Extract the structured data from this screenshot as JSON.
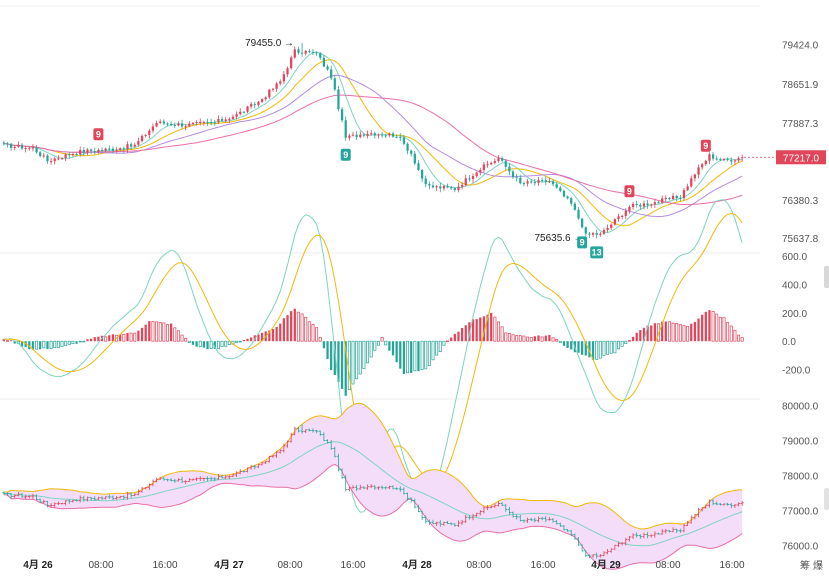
{
  "chart_data": [
    {
      "type": "candlestick",
      "name": "price",
      "title": "",
      "ylim": [
        75400,
        79750
      ],
      "ticks": [
        "79424.0",
        "78651.9",
        "77887.3",
        "76380.3",
        "75637.8"
      ],
      "tick_values": [
        79424.0,
        78651.9,
        77887.3,
        76380.3,
        75637.8
      ],
      "current_price_label": "77217.0",
      "current_price": 77217.0,
      "annotations": [
        {
          "text": "79455.0",
          "value": 79455.0,
          "kind": "high"
        },
        {
          "text": "75635.6",
          "value": 75635.6,
          "kind": "low"
        }
      ],
      "signals": [
        {
          "label": "9",
          "color": "#e0455a"
        },
        {
          "label": "9",
          "color": "#26a69a"
        },
        {
          "label": "9",
          "color": "#e0455a"
        },
        {
          "label": "9",
          "color": "#26a69a"
        },
        {
          "label": "13",
          "color": "#26a69a"
        },
        {
          "label": "9",
          "color": "#e0455a"
        }
      ],
      "key_points": [
        {
          "t": 0,
          "v": 77450
        },
        {
          "t": 8,
          "v": 77400
        },
        {
          "t": 12,
          "v": 77150
        },
        {
          "t": 20,
          "v": 77320
        },
        {
          "t": 30,
          "v": 77380
        },
        {
          "t": 36,
          "v": 77450
        },
        {
          "t": 42,
          "v": 77900
        },
        {
          "t": 50,
          "v": 77850
        },
        {
          "t": 58,
          "v": 77900
        },
        {
          "t": 64,
          "v": 78050
        },
        {
          "t": 70,
          "v": 78300
        },
        {
          "t": 76,
          "v": 78700
        },
        {
          "t": 80,
          "v": 79300
        },
        {
          "t": 86,
          "v": 79250
        },
        {
          "t": 90,
          "v": 78800
        },
        {
          "t": 94,
          "v": 77600
        },
        {
          "t": 100,
          "v": 77700
        },
        {
          "t": 108,
          "v": 77650
        },
        {
          "t": 112,
          "v": 77300
        },
        {
          "t": 116,
          "v": 76650
        },
        {
          "t": 124,
          "v": 76600
        },
        {
          "t": 130,
          "v": 76950
        },
        {
          "t": 136,
          "v": 77200
        },
        {
          "t": 142,
          "v": 76700
        },
        {
          "t": 150,
          "v": 76750
        },
        {
          "t": 156,
          "v": 76300
        },
        {
          "t": 160,
          "v": 75750
        },
        {
          "t": 164,
          "v": 75700
        },
        {
          "t": 172,
          "v": 76250
        },
        {
          "t": 180,
          "v": 76350
        },
        {
          "t": 186,
          "v": 76450
        },
        {
          "t": 190,
          "v": 76900
        },
        {
          "t": 194,
          "v": 77250
        },
        {
          "t": 198,
          "v": 77150
        },
        {
          "t": 203,
          "v": 77217
        }
      ]
    },
    {
      "type": "histogram",
      "name": "macd",
      "ylim": [
        -400,
        600
      ],
      "ticks": [
        "600.0",
        "400.0",
        "200.0",
        "0.0",
        "-200.0"
      ],
      "tick_values": [
        600,
        400,
        200,
        0,
        -200
      ],
      "key_points": [
        {
          "t": 0,
          "v": 20
        },
        {
          "t": 8,
          "v": -60
        },
        {
          "t": 16,
          "v": -40
        },
        {
          "t": 26,
          "v": 30
        },
        {
          "t": 36,
          "v": 60
        },
        {
          "t": 40,
          "v": 140
        },
        {
          "t": 46,
          "v": 120
        },
        {
          "t": 52,
          "v": -30
        },
        {
          "t": 58,
          "v": -60
        },
        {
          "t": 66,
          "v": 10
        },
        {
          "t": 74,
          "v": 80
        },
        {
          "t": 80,
          "v": 230
        },
        {
          "t": 86,
          "v": 100
        },
        {
          "t": 90,
          "v": -200
        },
        {
          "t": 94,
          "v": -380
        },
        {
          "t": 100,
          "v": -150
        },
        {
          "t": 104,
          "v": 20
        },
        {
          "t": 110,
          "v": -230
        },
        {
          "t": 116,
          "v": -200
        },
        {
          "t": 122,
          "v": 0
        },
        {
          "t": 128,
          "v": 140
        },
        {
          "t": 134,
          "v": 200
        },
        {
          "t": 138,
          "v": 60
        },
        {
          "t": 144,
          "v": 30
        },
        {
          "t": 150,
          "v": 40
        },
        {
          "t": 156,
          "v": -60
        },
        {
          "t": 162,
          "v": -130
        },
        {
          "t": 168,
          "v": -80
        },
        {
          "t": 176,
          "v": 100
        },
        {
          "t": 182,
          "v": 140
        },
        {
          "t": 188,
          "v": 100
        },
        {
          "t": 194,
          "v": 220
        },
        {
          "t": 198,
          "v": 160
        },
        {
          "t": 203,
          "v": 20
        }
      ]
    },
    {
      "type": "bollinger",
      "name": "boll",
      "ylim": [
        75700,
        80150
      ],
      "ticks": [
        "80000.0",
        "79000.0",
        "78000.0",
        "77000.0",
        "76000.0"
      ],
      "tick_values": [
        80000,
        79000,
        78000,
        77000,
        76000
      ]
    }
  ],
  "x_axis": {
    "labels": [
      {
        "text": "4月 26",
        "bold": true
      },
      {
        "text": "08:00",
        "bold": false
      },
      {
        "text": "16:00",
        "bold": false
      },
      {
        "text": "4月 27",
        "bold": true
      },
      {
        "text": "08:00",
        "bold": false
      },
      {
        "text": "16:00",
        "bold": false
      },
      {
        "text": "4月 28",
        "bold": true
      },
      {
        "text": "08:00",
        "bold": false
      },
      {
        "text": "16:00",
        "bold": false
      },
      {
        "text": "4月 29",
        "bold": true
      },
      {
        "text": "08:00",
        "bold": false
      },
      {
        "text": "16:00",
        "bold": false
      }
    ]
  },
  "footer": {
    "tools": "筹 爆"
  },
  "colors": {
    "up": "#e0455a",
    "down": "#26a69a",
    "ma1": "#f0b90b",
    "ma2": "#e86fa8",
    "ma3": "#7fd3c2",
    "ma4": "#b48ce0",
    "band_fill": "#f3ddf8"
  }
}
